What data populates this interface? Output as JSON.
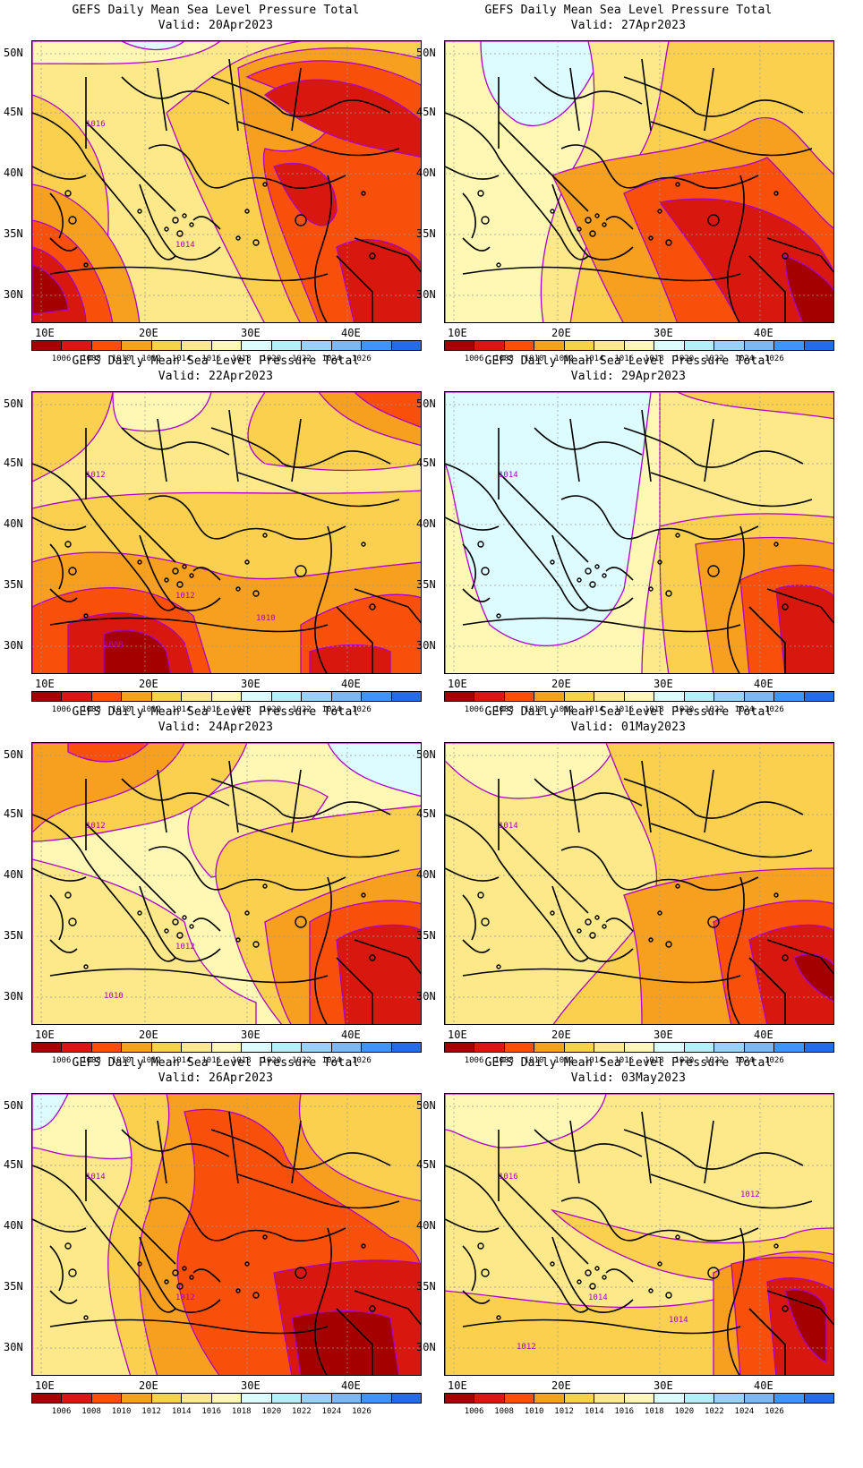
{
  "panels": [
    {
      "title": "GEFS Daily Mean Sea Level Pressure Total",
      "valid": "Valid: 20Apr2023",
      "contour_labels": [
        "1016",
        "1014"
      ],
      "dominant": "low pressure over eastern Mediterranean and southwest"
    },
    {
      "title": "GEFS Daily Mean Sea Level Pressure Total",
      "valid": "Valid: 27Apr2023",
      "contour_labels": [],
      "dominant": "low pressure over Turkey"
    },
    {
      "title": "GEFS Daily Mean Sea Level Pressure Total",
      "valid": "Valid: 22Apr2023",
      "contour_labels": [
        "1012",
        "1012",
        "1008",
        "1010"
      ],
      "dominant": "low pressure over Libya"
    },
    {
      "title": "GEFS Daily Mean Sea Level Pressure Total",
      "valid": "Valid: 29Apr2023",
      "contour_labels": [
        "1014"
      ],
      "dominant": "high pressure over Balkans and central Mediterranean"
    },
    {
      "title": "GEFS Daily Mean Sea Level Pressure Total",
      "valid": "Valid: 24Apr2023",
      "contour_labels": [
        "1012",
        "1012",
        "1010"
      ],
      "dominant": "low pressure in southeast"
    },
    {
      "title": "GEFS Daily Mean Sea Level Pressure Total",
      "valid": "Valid: 01May2023",
      "contour_labels": [
        "1014"
      ],
      "dominant": "low pressure in southeast"
    },
    {
      "title": "GEFS Daily Mean Sea Level Pressure Total",
      "valid": "Valid: 26Apr2023",
      "contour_labels": [
        "1014",
        "1012"
      ],
      "dominant": "low pressure over Aegean and Levant"
    },
    {
      "title": "GEFS Daily Mean Sea Level Pressure Total",
      "valid": "Valid: 03May2023",
      "contour_labels": [
        "1016",
        "1014",
        "1012",
        "1014",
        "1012"
      ],
      "dominant": "weak low in southeast"
    }
  ],
  "map": {
    "lat_labels": [
      "50N",
      "45N",
      "40N",
      "35N",
      "30N"
    ],
    "lon_labels": [
      "10E",
      "20E",
      "30E",
      "40E"
    ]
  },
  "legend": {
    "levels": [
      "1006",
      "1008",
      "1010",
      "1012",
      "1014",
      "1016",
      "1018",
      "1020",
      "1022",
      "1024",
      "1026"
    ],
    "colors": [
      "#a50000",
      "#d8180e",
      "#f8500a",
      "#f7a020",
      "#fbd04e",
      "#fde88a",
      "#fff8b4",
      "#dcfcff",
      "#b4f0fa",
      "#96d2fa",
      "#78b9fa",
      "#3c96f5",
      "#1e6ee6"
    ],
    "contour_color": "#aa00cc",
    "shading": {
      "below_1006": "#a50000",
      "1006_1008": "#d8180e",
      "1008_1010": "#f8500a",
      "1010_1012": "#f7a020",
      "1012_1014": "#fbd04e",
      "1014_1016": "#fde88a",
      "1016_1018": "#fff8b4",
      "1018_1020": "#dcfcff"
    }
  }
}
